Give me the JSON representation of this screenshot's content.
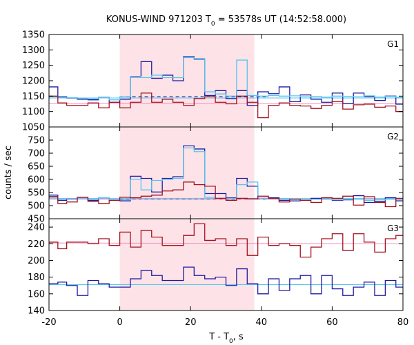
{
  "title_parts": [
    "KONUS-WIND 971203 T",
    "0",
    " = 53578s UT (14:52:58.000)"
  ],
  "xlabel_parts": [
    "T - T",
    "0",
    ", s"
  ],
  "ylabel": "counts / sec",
  "colors": {
    "shade": "#fde3e7",
    "dark_blue": "#1f1aa3",
    "light_blue": "#55c6f0",
    "dark_red": "#a3121f",
    "pink": "#f08cbe",
    "axis": "#000000"
  },
  "chart_data": {
    "type": "line",
    "xlim": [
      -20,
      80
    ],
    "xticks": [
      -20,
      0,
      20,
      40,
      60,
      80
    ],
    "shaded_interval": [
      0,
      38
    ],
    "panels": [
      {
        "name": "G1",
        "ylim": [
          1050,
          1350
        ],
        "yticks": [
          1050,
          1100,
          1150,
          1200,
          1250,
          1300,
          1350
        ],
        "background_dashed": 1148,
        "background_solid": [
          1144,
          1126
        ],
        "edges": [
          -20,
          -17.5,
          -15,
          -12,
          -9,
          -6,
          -3,
          0,
          3,
          6,
          9,
          12,
          15,
          18,
          21,
          24,
          27,
          30,
          33,
          36,
          39,
          42,
          45,
          48,
          51,
          54,
          57,
          60,
          63,
          66,
          69,
          72,
          75,
          78,
          80
        ],
        "series": [
          {
            "color": "dark_blue",
            "values": [
              1180,
              1148,
              1144,
              1140,
              1138,
              1146,
              1130,
              1140,
              1212,
              1262,
              1208,
              1218,
              1200,
              1278,
              1270,
              1152,
              1168,
              1142,
              1168,
              1120,
              1164,
              1158,
              1180,
              1132,
              1154,
              1140,
              1130,
              1160,
              1126,
              1160,
              1148,
              1136,
              1150,
              1124
            ]
          },
          {
            "color": "light_blue",
            "values": [
              1148,
              1145,
              1145,
              1143,
              1141,
              1145,
              1138,
              1148,
              1214,
              1210,
              1218,
              1210,
              1210,
              1275,
              1272,
              1164,
              1157,
              1150,
              1267,
              1152,
              1150,
              1152,
              1150,
              1151,
              1148,
              1149,
              1147,
              1150,
              1149,
              1148,
              1151,
              1147,
              1149,
              1146
            ]
          },
          {
            "color": "dark_red",
            "values": [
              1150,
              1128,
              1120,
              1120,
              1128,
              1112,
              1130,
              1112,
              1130,
              1160,
              1130,
              1140,
              1130,
              1120,
              1142,
              1148,
              1130,
              1125,
              1150,
              1130,
              1080,
              1120,
              1128,
              1120,
              1118,
              1110,
              1120,
              1132,
              1108,
              1122,
              1124,
              1114,
              1118,
              1100
            ]
          }
        ]
      },
      {
        "name": "G2",
        "ylim": [
          450,
          800
        ],
        "yticks": [
          450,
          500,
          550,
          600,
          650,
          700,
          750
        ],
        "background_dashed": 525,
        "background_solid": [
          528,
          524
        ],
        "edges": [
          -20,
          -17.5,
          -15,
          -12,
          -9,
          -6,
          -3,
          0,
          3,
          6,
          9,
          12,
          15,
          18,
          21,
          24,
          27,
          30,
          33,
          36,
          39,
          42,
          45,
          48,
          51,
          54,
          57,
          60,
          63,
          66,
          69,
          72,
          75,
          78,
          80
        ],
        "series": [
          {
            "color": "dark_blue",
            "values": [
              540,
              520,
              526,
              528,
              520,
              530,
              520,
              518,
              612,
              604,
              552,
              604,
              610,
              728,
              716,
              546,
              546,
              530,
              604,
              574,
              528,
              530,
              520,
              518,
              522,
              528,
              526,
              520,
              522,
              538,
              512,
              516,
              530,
              518
            ]
          },
          {
            "color": "light_blue",
            "values": [
              530,
              525,
              527,
              528,
              525,
              530,
              522,
              522,
              600,
              560,
              596,
              600,
              604,
              720,
              706,
              532,
              528,
              528,
              580,
              590,
              528,
              526,
              525,
              524,
              522,
              524,
              526,
              522,
              524,
              525,
              520,
              522,
              524,
              522
            ]
          },
          {
            "color": "dark_red",
            "values": [
              535,
              508,
              514,
              532,
              516,
              508,
              520,
              532,
              530,
              536,
              540,
              556,
              560,
              590,
              580,
              574,
              528,
              520,
              528,
              526,
              536,
              528,
              514,
              524,
              520,
              512,
              530,
              528,
              536,
              502,
              534,
              512,
              496,
              528
            ]
          }
        ]
      },
      {
        "name": "G3",
        "ylim": [
          140,
          250
        ],
        "yticks": [
          140,
          160,
          180,
          200,
          220,
          240
        ],
        "background_solid_red": [
          221,
          220
        ],
        "background_solid_blue": [
          171,
          171
        ],
        "edges": [
          -20,
          -17.5,
          -15,
          -12,
          -9,
          -6,
          -3,
          0,
          3,
          6,
          9,
          12,
          15,
          18,
          21,
          24,
          27,
          30,
          33,
          36,
          39,
          42,
          45,
          48,
          51,
          54,
          57,
          60,
          63,
          66,
          69,
          72,
          75,
          78,
          80
        ],
        "series": [
          {
            "color": "dark_red",
            "values": [
              222,
              214,
              222,
              222,
              220,
              226,
              218,
              234,
              216,
              236,
              228,
              218,
              218,
              230,
              244,
              224,
              226,
              218,
              226,
              206,
              228,
              218,
              220,
              218,
              204,
              216,
              226,
              232,
              212,
              232,
              222,
              210,
              226,
              230
            ]
          },
          {
            "color": "dark_blue",
            "values": [
              172,
              174,
              170,
              158,
              176,
              172,
              168,
              168,
              178,
              188,
              182,
              176,
              176,
              192,
              182,
              178,
              180,
              170,
              190,
              172,
              160,
              178,
              164,
              178,
              182,
              160,
              182,
              166,
              158,
              168,
              174,
              158,
              176,
              168
            ]
          }
        ]
      }
    ]
  }
}
